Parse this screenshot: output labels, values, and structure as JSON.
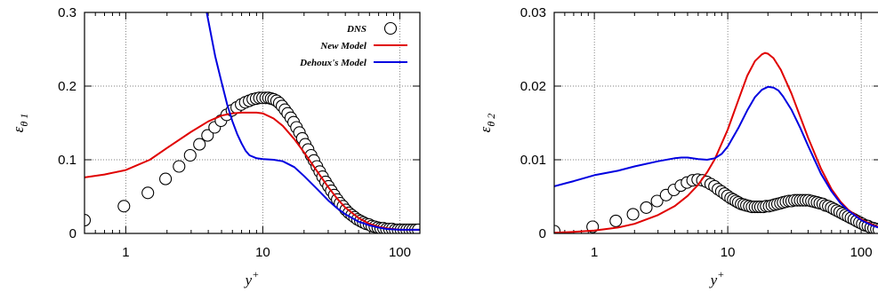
{
  "chart_data": [
    {
      "type": "line",
      "xscale": "log",
      "xlim": [
        0.5,
        140
      ],
      "ylim": [
        0,
        0.3
      ],
      "xticks": [
        1,
        10,
        100
      ],
      "xtick_labels": [
        "1",
        "10",
        "100"
      ],
      "yticks": [
        0,
        0.1,
        0.2,
        0.3
      ],
      "ytick_labels": [
        "0",
        "0.1",
        "0.2",
        "0.3"
      ],
      "xlabel": "y",
      "xlabel_sup": "+",
      "ylabel": "ε",
      "ylabel_sub": "θ 1",
      "grid": true,
      "legend": "top-right",
      "series": [
        {
          "name": "DNS",
          "style": "markers",
          "color": "#000000",
          "x": [
            0.5,
            0.97,
            1.45,
            1.95,
            2.45,
            2.95,
            3.45,
            3.95,
            4.45,
            4.95,
            5.45,
            5.95,
            6.45,
            6.95,
            7.45,
            7.95,
            8.45,
            8.95,
            9.45,
            9.95,
            10.5,
            11.0,
            11.5,
            12.0,
            12.6,
            13.2,
            13.8,
            14.5,
            15.2,
            16.0,
            16.8,
            17.6,
            18.5,
            19.4,
            20.4,
            21.4,
            22.5,
            23.6,
            24.8,
            26.0,
            27.3,
            28.7,
            30.1,
            31.6,
            33.2,
            34.9,
            36.6,
            38.4,
            40.3,
            42.4,
            44.5,
            46.7,
            49.0,
            51.5,
            54.0,
            56.7,
            59.6,
            62.5,
            65.7,
            69.0,
            72.4,
            76.0,
            79.8,
            83.8,
            88.0,
            92.4,
            97.0,
            101.9,
            107.0,
            112.3,
            117.9,
            123.8,
            130.0,
            136.0
          ],
          "y": [
            0.018,
            0.037,
            0.055,
            0.074,
            0.091,
            0.106,
            0.121,
            0.133,
            0.144,
            0.153,
            0.161,
            0.167,
            0.171,
            0.175,
            0.178,
            0.18,
            0.182,
            0.183,
            0.184,
            0.184,
            0.184,
            0.184,
            0.183,
            0.182,
            0.18,
            0.177,
            0.173,
            0.168,
            0.163,
            0.157,
            0.151,
            0.144,
            0.137,
            0.129,
            0.121,
            0.114,
            0.106,
            0.099,
            0.091,
            0.084,
            0.077,
            0.07,
            0.064,
            0.058,
            0.052,
            0.046,
            0.041,
            0.037,
            0.032,
            0.028,
            0.025,
            0.022,
            0.019,
            0.017,
            0.015,
            0.013,
            0.012,
            0.01,
            0.009,
            0.008,
            0.007,
            0.007,
            0.006,
            0.006,
            0.006,
            0.005,
            0.005,
            0.005,
            0.005,
            0.005,
            0.005,
            0.005,
            0.005,
            0.005
          ]
        },
        {
          "name": "New Model",
          "style": "line",
          "color": "#e00000",
          "x": [
            0.5,
            0.7,
            1.0,
            1.5,
            2.0,
            3.0,
            4.0,
            5.0,
            6.0,
            7.0,
            8.0,
            9.0,
            10.0,
            12.0,
            14.0,
            17.0,
            20.0,
            25.0,
            30.0,
            35.0,
            40.0,
            50.0,
            60.0,
            70.0,
            80.0,
            100.0,
            120.0,
            140.0
          ],
          "y": [
            0.076,
            0.08,
            0.086,
            0.1,
            0.116,
            0.138,
            0.152,
            0.16,
            0.163,
            0.164,
            0.164,
            0.164,
            0.163,
            0.156,
            0.146,
            0.128,
            0.11,
            0.084,
            0.063,
            0.047,
            0.035,
            0.021,
            0.013,
            0.009,
            0.007,
            0.005,
            0.005,
            0.005
          ]
        },
        {
          "name": "Dehoux's Model",
          "style": "line",
          "color": "#0000e0",
          "x": [
            3.9,
            4.5,
            5.0,
            5.5,
            6.0,
            6.5,
            7.0,
            7.5,
            8.0,
            9.0,
            10.0,
            12.0,
            14.0,
            17.0,
            20.0,
            25.0,
            30.0,
            35.0,
            40.0,
            50.0,
            60.0,
            70.0,
            80.0,
            100.0,
            120.0,
            140.0
          ],
          "y": [
            0.3,
            0.24,
            0.205,
            0.175,
            0.152,
            0.135,
            0.122,
            0.112,
            0.106,
            0.102,
            0.101,
            0.1,
            0.098,
            0.09,
            0.078,
            0.06,
            0.045,
            0.034,
            0.026,
            0.016,
            0.011,
            0.008,
            0.006,
            0.005,
            0.005,
            0.005
          ]
        }
      ]
    },
    {
      "type": "line",
      "xscale": "log",
      "xlim": [
        0.5,
        140
      ],
      "ylim": [
        0,
        0.03
      ],
      "xticks": [
        1,
        10,
        100
      ],
      "xtick_labels": [
        "1",
        "10",
        "100"
      ],
      "yticks": [
        0,
        0.01,
        0.02,
        0.03
      ],
      "ytick_labels": [
        "0",
        "0.01",
        "0.02",
        "0.03"
      ],
      "xlabel": "y",
      "xlabel_sup": "+",
      "ylabel": "ε",
      "ylabel_sub": "θ 2",
      "grid": true,
      "legend": "none",
      "series": [
        {
          "name": "DNS",
          "style": "markers",
          "color": "#000000",
          "x": [
            0.5,
            0.97,
            1.45,
            1.95,
            2.45,
            2.95,
            3.45,
            3.95,
            4.45,
            4.95,
            5.45,
            5.95,
            6.45,
            6.95,
            7.45,
            7.95,
            8.45,
            8.95,
            9.45,
            9.95,
            10.5,
            11.0,
            11.5,
            12.0,
            12.6,
            13.2,
            13.8,
            14.5,
            15.2,
            16.0,
            16.8,
            17.6,
            18.5,
            19.4,
            20.4,
            21.4,
            22.5,
            23.6,
            24.8,
            26.0,
            27.3,
            28.7,
            30.1,
            31.6,
            33.2,
            34.9,
            36.6,
            38.4,
            40.3,
            42.4,
            44.5,
            46.7,
            49.0,
            51.5,
            54.0,
            56.7,
            59.6,
            62.5,
            65.7,
            69.0,
            72.4,
            76.0,
            79.8,
            83.8,
            88.0,
            92.4,
            97.0,
            101.9,
            107.0,
            112.3,
            117.9,
            123.8,
            130.0,
            136.0
          ],
          "y": [
            0.0003,
            0.0009,
            0.0017,
            0.0026,
            0.0035,
            0.0044,
            0.0052,
            0.0059,
            0.0065,
            0.0069,
            0.0072,
            0.0073,
            0.0072,
            0.007,
            0.0067,
            0.0064,
            0.006,
            0.0057,
            0.0054,
            0.0051,
            0.0048,
            0.0046,
            0.0044,
            0.0042,
            0.004,
            0.0039,
            0.0038,
            0.0037,
            0.0036,
            0.0036,
            0.0036,
            0.0036,
            0.0036,
            0.0037,
            0.0037,
            0.0038,
            0.0039,
            0.004,
            0.0041,
            0.0042,
            0.0043,
            0.0044,
            0.0044,
            0.0045,
            0.0045,
            0.0045,
            0.0045,
            0.0045,
            0.0045,
            0.0044,
            0.0043,
            0.0042,
            0.0041,
            0.004,
            0.0038,
            0.0037,
            0.0035,
            0.0033,
            0.0031,
            0.0029,
            0.0027,
            0.0025,
            0.0023,
            0.0021,
            0.0019,
            0.0017,
            0.0015,
            0.0013,
            0.0011,
            0.001,
            0.0008,
            0.0007,
            0.0006,
            0.0005
          ]
        },
        {
          "name": "New Model",
          "style": "line",
          "color": "#e00000",
          "x": [
            0.5,
            0.7,
            1.0,
            1.5,
            2.0,
            3.0,
            4.0,
            5.0,
            6.0,
            7.0,
            8.0,
            10.0,
            12.0,
            14.0,
            16.0,
            18.0,
            19.0,
            20.0,
            22.0,
            25.0,
            30.0,
            35.0,
            40.0,
            50.0,
            60.0,
            70.0,
            80.0,
            100.0,
            120.0,
            140.0
          ],
          "y": [
            0.0001,
            0.0002,
            0.0004,
            0.0008,
            0.0013,
            0.0025,
            0.0037,
            0.0051,
            0.0066,
            0.0083,
            0.0101,
            0.0141,
            0.0181,
            0.0214,
            0.0234,
            0.0243,
            0.0245,
            0.0244,
            0.0238,
            0.0222,
            0.019,
            0.0158,
            0.013,
            0.0088,
            0.006,
            0.0043,
            0.0032,
            0.0019,
            0.0012,
            0.0008
          ]
        },
        {
          "name": "Dehoux's Model",
          "style": "line",
          "color": "#0000e0",
          "x": [
            0.5,
            0.7,
            1.0,
            1.5,
            2.0,
            3.0,
            4.0,
            4.5,
            5.0,
            6.0,
            7.0,
            8.0,
            9.0,
            10.0,
            12.0,
            14.0,
            16.0,
            18.0,
            20.0,
            22.0,
            24.0,
            26.0,
            30.0,
            35.0,
            40.0,
            50.0,
            60.0,
            70.0,
            80.0,
            100.0,
            120.0,
            140.0
          ],
          "y": [
            0.0064,
            0.0071,
            0.0079,
            0.0085,
            0.0091,
            0.0098,
            0.0102,
            0.0103,
            0.0103,
            0.0101,
            0.01,
            0.0102,
            0.0108,
            0.0118,
            0.0143,
            0.0167,
            0.0185,
            0.0195,
            0.0199,
            0.0198,
            0.0194,
            0.0186,
            0.0168,
            0.0143,
            0.0119,
            0.0081,
            0.0057,
            0.0041,
            0.0031,
            0.0018,
            0.0011,
            0.0007
          ]
        }
      ]
    }
  ]
}
